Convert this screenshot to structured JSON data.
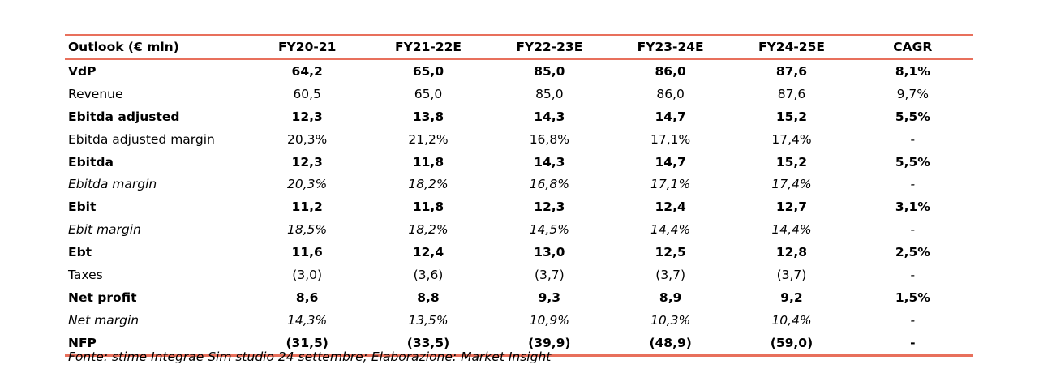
{
  "table": {
    "header": [
      "Outlook (€ mln)",
      "FY20-21",
      "FY21-22E",
      "FY22-23E",
      "FY23-24E",
      "FY24-25E",
      "CAGR"
    ],
    "rows": [
      {
        "style": "bold",
        "label": "VdP",
        "values": [
          "64,2",
          "65,0",
          "85,0",
          "86,0",
          "87,6",
          "8,1%"
        ]
      },
      {
        "style": "regular",
        "label": "Revenue",
        "values": [
          "60,5",
          "65,0",
          "85,0",
          "86,0",
          "87,6",
          "9,7%"
        ]
      },
      {
        "style": "bold",
        "label": "Ebitda adjusted",
        "values": [
          "12,3",
          "13,8",
          "14,3",
          "14,7",
          "15,2",
          "5,5%"
        ]
      },
      {
        "style": "regular",
        "label": "Ebitda adjusted margin",
        "values": [
          "20,3%",
          "21,2%",
          "16,8%",
          "17,1%",
          "17,4%",
          "-"
        ]
      },
      {
        "style": "bold",
        "label": "Ebitda",
        "values": [
          "12,3",
          "11,8",
          "14,3",
          "14,7",
          "15,2",
          "5,5%"
        ]
      },
      {
        "style": "italic",
        "label": "Ebitda margin",
        "values": [
          "20,3%",
          "18,2%",
          "16,8%",
          "17,1%",
          "17,4%",
          "-"
        ]
      },
      {
        "style": "bold",
        "label": "Ebit",
        "values": [
          "11,2",
          "11,8",
          "12,3",
          "12,4",
          "12,7",
          "3,1%"
        ]
      },
      {
        "style": "italic",
        "label": "Ebit margin",
        "values": [
          "18,5%",
          "18,2%",
          "14,5%",
          "14,4%",
          "14,4%",
          "-"
        ]
      },
      {
        "style": "bold",
        "label": "Ebt",
        "values": [
          "11,6",
          "12,4",
          "13,0",
          "12,5",
          "12,8",
          "2,5%"
        ]
      },
      {
        "style": "regular",
        "label": "Taxes",
        "values": [
          "(3,0)",
          "(3,6)",
          "(3,7)",
          "(3,7)",
          "(3,7)",
          "-"
        ]
      },
      {
        "style": "bold",
        "label": "Net profit",
        "values": [
          "8,6",
          "8,8",
          "9,3",
          "8,9",
          "9,2",
          "1,5%"
        ]
      },
      {
        "style": "italic",
        "label": "Net margin",
        "values": [
          "14,3%",
          "13,5%",
          "10,9%",
          "10,3%",
          "10,4%",
          "-"
        ]
      },
      {
        "style": "bold",
        "label": "NFP",
        "values": [
          "(31,5)",
          "(33,5)",
          "(39,9)",
          "(48,9)",
          "(59,0)",
          "-"
        ]
      }
    ]
  },
  "source_note": "Fonte: stime Integrae Sim studio 24 settembre; Elaborazione: Market Insight",
  "colors": {
    "rule": "#e8705c"
  }
}
